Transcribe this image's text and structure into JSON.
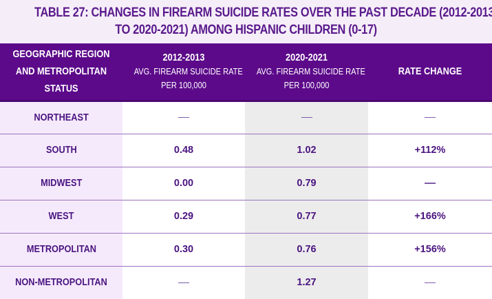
{
  "title": {
    "line1": "TABLE 27: CHANGES IN FIREARM SUICIDE RATES OVER THE PAST DECADE (2012-2013",
    "line2": "TO 2020-2021) AMONG HISPANIC CHILDREN (0-17)"
  },
  "colors": {
    "header_bg": "#5c0a8a",
    "title_text": "#5a1a8c",
    "cell_text": "#4a1480",
    "region_col_bg": "#f5eafc",
    "col_2020_bg": "#ececec",
    "row_divider": "#9b72bf"
  },
  "headers": {
    "region": {
      "line1": "GEOGRAPHIC REGION",
      "line2": "AND METROPOLITAN",
      "line3": "STATUS"
    },
    "period1": {
      "main": "2012-2013",
      "sub1": "AVG. FIREARM SUICIDE RATE",
      "sub2": "PER 100,000"
    },
    "period2": {
      "main": "2020-2021",
      "sub1": "AVG. FIREARM SUICIDE RATE",
      "sub2": "PER 100,000"
    },
    "change": {
      "main": "RATE CHANGE"
    }
  },
  "rows": [
    {
      "region": "NORTHEAST",
      "rate_2012_2013": "—",
      "rate_2020_2021": "—",
      "rate_change": "—"
    },
    {
      "region": "SOUTH",
      "rate_2012_2013": "0.48",
      "rate_2020_2021": "1.02",
      "rate_change": "+112%"
    },
    {
      "region": "MIDWEST",
      "rate_2012_2013": "0.00",
      "rate_2020_2021": "0.79",
      "rate_change": "—"
    },
    {
      "region": "WEST",
      "rate_2012_2013": "0.29",
      "rate_2020_2021": "0.77",
      "rate_change": "+166%"
    },
    {
      "region": "METROPOLITAN",
      "rate_2012_2013": "0.30",
      "rate_2020_2021": "0.76",
      "rate_change": "+156%"
    },
    {
      "region": "NON-METROPOLITAN",
      "rate_2012_2013": "—",
      "rate_2020_2021": "1.27",
      "rate_change": "—"
    }
  ]
}
